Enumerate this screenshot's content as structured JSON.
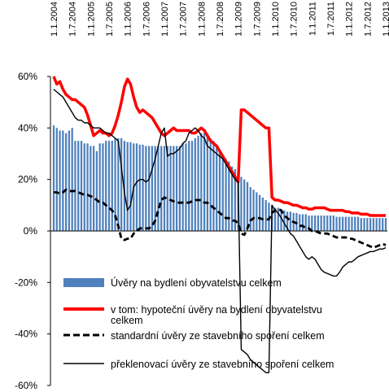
{
  "chart_data": {
    "type": "bar",
    "ylim": [
      -60,
      60
    ],
    "yticks": [
      "-60%",
      "-40%",
      "-20%",
      "0%",
      "20%",
      "40%",
      "60%"
    ],
    "ytick_values": [
      -60,
      -40,
      -20,
      0,
      20,
      40,
      60
    ],
    "xtick_labels": [
      "1.1.2004",
      "1.7.2004",
      "1.1.2005",
      "1.7.2005",
      "1.1.2006",
      "1.7.2006",
      "1.1.2007",
      "1.7.2007",
      "1.1.2008",
      "1.7.2008",
      "1.1.2009",
      "1.7.2009",
      "1.1.2010",
      "1.7.2010",
      "1.1.2011",
      "1.7.2011",
      "1.1.2012",
      "1.7.2012",
      "1.1.2013"
    ],
    "grid": false,
    "legend_position": "inside-bottom",
    "series": [
      {
        "name": "Úvěry na bydlení obyvatelstvu celkem",
        "kind": "bar",
        "color": "#4f81bd",
        "values": [
          41,
          40,
          39,
          39,
          38,
          39,
          40,
          35,
          35,
          35,
          34,
          34,
          33,
          33,
          31,
          34,
          34,
          35,
          35,
          35,
          36,
          36,
          36,
          35,
          34.5,
          34.5,
          34,
          34,
          33.5,
          33.5,
          33,
          33,
          33,
          33,
          33,
          33,
          33,
          33,
          33,
          33,
          33,
          33,
          34,
          34,
          35,
          35,
          36,
          37,
          38,
          38,
          37,
          36,
          35,
          33,
          31,
          29,
          28,
          27,
          25,
          24,
          22,
          21,
          20,
          19,
          17,
          16,
          15,
          14,
          13,
          12,
          11,
          10,
          9,
          9,
          8.5,
          8,
          7.5,
          7.5,
          7,
          7,
          6.5,
          6.5,
          6.5,
          6,
          6,
          6,
          6,
          6,
          6,
          6,
          6,
          6,
          5.5,
          5.5,
          5.5,
          5.5,
          5.5,
          5.5,
          5.5,
          5.5,
          5,
          5,
          5,
          5,
          5,
          5,
          5,
          5,
          5
        ]
      },
      {
        "name": "v tom: hypoteční úvěry na bydlení obyvatelstvu celkem",
        "kind": "line",
        "color": "#ff0000",
        "values": [
          60,
          57,
          58,
          55,
          53,
          52,
          51,
          51,
          50,
          49,
          48,
          45,
          41,
          37,
          38,
          39,
          38,
          38,
          37,
          38,
          41,
          45,
          50,
          56,
          59,
          57,
          52,
          48,
          46,
          47,
          46,
          45,
          44,
          42,
          40,
          38,
          37,
          38,
          39,
          40,
          39,
          39,
          39,
          39,
          39,
          38,
          38,
          39,
          40,
          39,
          37,
          35,
          34,
          33,
          31,
          29,
          27,
          25,
          23,
          21,
          19,
          47,
          47,
          46,
          45,
          44,
          43,
          42,
          41,
          40,
          40,
          13,
          12,
          12,
          11.5,
          11,
          11,
          10.5,
          10,
          10,
          9.5,
          9,
          9,
          8.5,
          8.5,
          9,
          9,
          9,
          9,
          8.5,
          8,
          8,
          8,
          8,
          8,
          7.5,
          7.5,
          7,
          7,
          7,
          6.5,
          6.5,
          6.5,
          6,
          6,
          6,
          6,
          6,
          6
        ]
      },
      {
        "name": "standardní úvěry ze stavebního spoření celkem",
        "kind": "line",
        "color": "#000000",
        "dash": true,
        "values": [
          15,
          15,
          14.5,
          15,
          16,
          15.5,
          15.5,
          15.5,
          15,
          14.5,
          14,
          14,
          13.5,
          13,
          12,
          11,
          11,
          10,
          9,
          8,
          6,
          2,
          -3,
          -3.5,
          -3,
          -3,
          -1,
          0,
          1,
          1,
          1,
          1,
          2,
          4,
          8,
          12,
          13,
          12.5,
          12,
          11.5,
          11,
          11,
          11,
          11,
          11,
          11.5,
          12,
          12,
          12,
          11,
          11,
          10,
          9,
          8,
          7,
          6,
          5,
          5,
          4,
          4,
          3,
          -1,
          -1.5,
          1,
          4,
          5,
          5,
          5,
          4.5,
          4.5,
          4.5,
          7,
          8,
          8.5,
          8,
          6,
          5,
          4,
          3.5,
          3,
          2,
          2,
          1,
          1,
          0,
          0,
          -0.5,
          -1,
          -1,
          -1,
          -1.5,
          -2,
          -2.5,
          -2.5,
          -2.5,
          -2.5,
          -3,
          -3,
          -3.5,
          -4,
          -4.5,
          -5,
          -5.5,
          -6,
          -6.5,
          -6,
          -5.5,
          -5,
          -5.5
        ]
      },
      {
        "name": "překlenovací úvěry ze stavebního spoření celkem",
        "kind": "line",
        "color": "#000000",
        "dash": false,
        "values": [
          55,
          54,
          53,
          52,
          50,
          48,
          46,
          44,
          43,
          43,
          42,
          42,
          41,
          40,
          40,
          40,
          39,
          38,
          38,
          37,
          36,
          35,
          25,
          15,
          8,
          10,
          17,
          19,
          20,
          20,
          19,
          20,
          24,
          28,
          33,
          38,
          40,
          29,
          30,
          30,
          31,
          32,
          34,
          35,
          38,
          39,
          40,
          39,
          37,
          36,
          33,
          32,
          31,
          30,
          29,
          28,
          26,
          24,
          22,
          20,
          19,
          -46,
          -47,
          -48,
          -50,
          -51,
          -52,
          -53,
          -54,
          -55,
          -55,
          10,
          8,
          7,
          5,
          3,
          1,
          -1,
          -2,
          -4,
          -6,
          -8,
          -10,
          -11,
          -10,
          -11,
          -13,
          -15,
          -16,
          -16.5,
          -17,
          -17.5,
          -17.5,
          -16,
          -14,
          -13,
          -12,
          -12,
          -11,
          -10,
          -9.5,
          -9,
          -8.5,
          -8,
          -8,
          -7.5,
          -7,
          -7,
          -6.5
        ]
      }
    ]
  }
}
